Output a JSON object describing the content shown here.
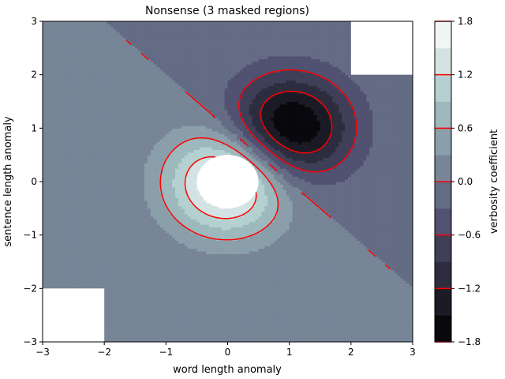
{
  "chart_data": {
    "type": "contour",
    "title": "Nonsense (3 masked regions)",
    "xlabel": "word length anomaly",
    "ylabel": "sentence length anomaly",
    "xlim": [
      -3,
      3
    ],
    "ylim": [
      -3,
      3
    ],
    "xticks": [
      "−3",
      "−2",
      "−1",
      "0",
      "1",
      "2",
      "3"
    ],
    "yticks": [
      "−3",
      "−2",
      "−1",
      "0",
      "1",
      "2",
      "3"
    ],
    "colorbar": {
      "label": "verbosity coefficient",
      "range": [
        -1.8,
        1.8
      ],
      "level_step": 0.3,
      "ticks": [
        "−1.8",
        "−1.2",
        "−0.6",
        "0.0",
        "0.6",
        "1.2",
        "1.8"
      ],
      "line_levels": [
        -1.8,
        -1.2,
        -0.6,
        0.0,
        0.6,
        1.2,
        1.8
      ]
    },
    "contour_lines": {
      "color": "#ff0000",
      "levels": [
        -1.2,
        -0.6,
        0.0,
        0.6,
        1.2
      ],
      "negative_style": "dashed"
    },
    "field": {
      "description": "Z = (Z1 - Z2) * 2, Z1 = exp(-x^2 - y^2), Z2 = exp(-(x-1)^2 - (y-1)^2)",
      "masked_regions": [
        {
          "x": [
            -3,
            -2
          ],
          "y": [
            -3,
            -2
          ]
        },
        {
          "x": [
            2,
            3
          ],
          "y": [
            2,
            3
          ]
        },
        {
          "shape": "circle",
          "center": [
            0,
            0
          ],
          "radius": 0.5
        }
      ]
    },
    "colormap": "bone",
    "grid": false
  }
}
